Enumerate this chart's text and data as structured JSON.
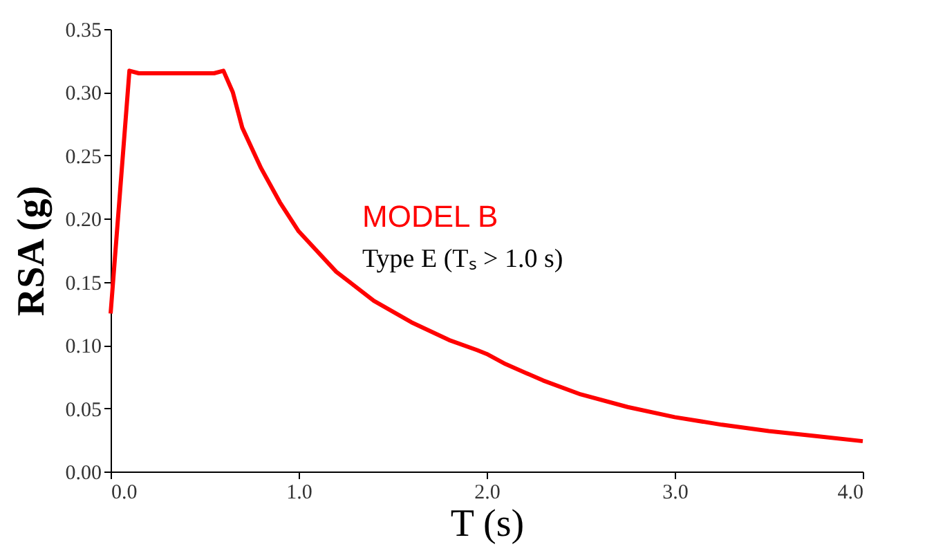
{
  "chart_data": {
    "type": "line",
    "xlabel": "T (s)",
    "ylabel": "RSA (g)",
    "annotations": [
      "Type E (Tₛ > 1.0 s)"
    ],
    "xlim": [
      0,
      4
    ],
    "ylim": [
      0,
      0.35
    ],
    "xticks": [
      {
        "value": 0,
        "label": "0.0"
      },
      {
        "value": 1,
        "label": "1.0"
      },
      {
        "value": 2,
        "label": "2.0"
      },
      {
        "value": 3,
        "label": "3.0"
      },
      {
        "value": 4,
        "label": "4.0"
      }
    ],
    "yticks": [
      {
        "value": 0,
        "label": "0.00"
      },
      {
        "value": 0.05,
        "label": "0.05"
      },
      {
        "value": 0.1,
        "label": "0.10"
      },
      {
        "value": 0.15,
        "label": "0.15"
      },
      {
        "value": 0.2,
        "label": "0.20"
      },
      {
        "value": 0.25,
        "label": "0.25"
      },
      {
        "value": 0.3,
        "label": "0.30"
      },
      {
        "value": 0.35,
        "label": "0.35"
      }
    ],
    "grid": false,
    "series": [
      {
        "name": "MODEL B",
        "color": "#ff0000",
        "x": [
          0,
          0.1,
          0.15,
          0.55,
          0.6,
          0.65,
          0.7,
          0.8,
          0.9,
          1.0,
          1.2,
          1.4,
          1.6,
          1.8,
          1.95,
          2.0,
          2.1,
          2.3,
          2.5,
          2.75,
          3.0,
          3.25,
          3.5,
          3.75,
          4.0
        ],
        "values": [
          0.125,
          0.317,
          0.315,
          0.315,
          0.317,
          0.3,
          0.272,
          0.24,
          0.213,
          0.19,
          0.158,
          0.135,
          0.118,
          0.104,
          0.096,
          0.093,
          0.085,
          0.072,
          0.061,
          0.051,
          0.043,
          0.037,
          0.032,
          0.028,
          0.024
        ]
      }
    ]
  }
}
